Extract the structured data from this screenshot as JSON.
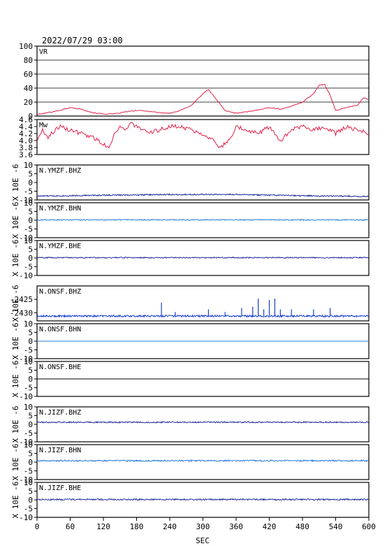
{
  "header": {
    "datetime": "2022/07/29 03:00"
  },
  "colors": {
    "frame": "#000000",
    "vr": "#e0204a",
    "mw": "#e0204a",
    "blue_dark": "#1f2f9a",
    "blue_light": "#2c7fd8",
    "blue_mid": "#1a3fd0"
  },
  "chart_data": [
    {
      "type": "line",
      "label": "VR",
      "ylim": [
        0,
        100
      ],
      "yticks": [
        "0",
        "20",
        "40",
        "60",
        "80",
        "100"
      ],
      "grid": true,
      "color_key": "vr",
      "x": [
        0,
        20,
        40,
        60,
        80,
        100,
        120,
        140,
        160,
        180,
        200,
        220,
        240,
        260,
        280,
        300,
        310,
        320,
        340,
        360,
        380,
        400,
        420,
        440,
        460,
        480,
        500,
        510,
        520,
        530,
        540,
        560,
        570,
        580,
        590,
        600
      ],
      "y": [
        2,
        5,
        8,
        12,
        10,
        5,
        3,
        3,
        6,
        8,
        7,
        5,
        4,
        8,
        16,
        32,
        38,
        28,
        8,
        4,
        6,
        9,
        12,
        10,
        14,
        20,
        32,
        44,
        45,
        30,
        8,
        12,
        14,
        16,
        26,
        24
      ]
    },
    {
      "type": "line",
      "label": "Mw",
      "ylim": [
        3.6,
        4.6
      ],
      "yticks": [
        "3.6",
        "3.8",
        "4.0",
        "4.2",
        "4.4",
        "4.6"
      ],
      "grid": false,
      "color_key": "mw",
      "x": [
        0,
        10,
        20,
        40,
        60,
        80,
        100,
        110,
        120,
        130,
        140,
        150,
        160,
        170,
        180,
        200,
        220,
        240,
        260,
        280,
        300,
        320,
        330,
        340,
        350,
        360,
        380,
        400,
        420,
        440,
        460,
        480,
        500,
        520,
        540,
        560,
        580,
        600
      ],
      "y": [
        4.0,
        4.3,
        4.1,
        4.4,
        4.3,
        4.2,
        4.1,
        4.0,
        3.9,
        3.8,
        4.2,
        4.4,
        4.3,
        4.5,
        4.4,
        4.2,
        4.3,
        4.4,
        4.4,
        4.3,
        4.2,
        4.0,
        3.8,
        3.9,
        4.1,
        4.4,
        4.3,
        4.2,
        4.4,
        4.0,
        4.3,
        4.4,
        4.3,
        4.4,
        4.2,
        4.4,
        4.3,
        4.2
      ]
    },
    {
      "type": "line",
      "label": "N.YMZF.BHZ",
      "ylabel": "X 10E -6",
      "ylim": [
        -10,
        10
      ],
      "yticks": [
        "-10",
        "-5",
        "0",
        "5",
        "10"
      ],
      "color_key": "blue_dark",
      "baseline": -7.5,
      "noise": 0.35,
      "drift": [
        [
          0,
          -7.8
        ],
        [
          120,
          -7.3
        ],
        [
          240,
          -6.9
        ],
        [
          360,
          -6.9
        ],
        [
          480,
          -7.6
        ],
        [
          600,
          -8.0
        ]
      ]
    },
    {
      "type": "line",
      "label": "N.YMZF.BHN",
      "ylabel": "X 10E -6",
      "ylim": [
        -10,
        10
      ],
      "yticks": [
        "-10",
        "-5",
        "0",
        "5",
        "10"
      ],
      "color_key": "blue_light",
      "baseline": 0.2,
      "noise": 0.3
    },
    {
      "type": "line",
      "label": "N.YMZF.BHE",
      "ylabel": "X 10E -6",
      "ylim": [
        -10,
        10
      ],
      "yticks": [
        "-10",
        "-5",
        "0",
        "5",
        "10"
      ],
      "color_key": "blue_dark",
      "baseline": 0.2,
      "noise": 0.3
    },
    {
      "type": "line",
      "label": "N.ONSF.BHZ",
      "ylabel": "X 10E -6",
      "ylim": [
        -2433,
        -2420
      ],
      "yticks": [
        "-2425",
        "-2430"
      ],
      "ytick_values": [
        -2425,
        -2430
      ],
      "color_key": "blue_mid",
      "baseline": -2431.2,
      "noise": 0.35,
      "spikes": [
        [
          225,
          5.0
        ],
        [
          250,
          1.5
        ],
        [
          310,
          2.5
        ],
        [
          340,
          1.5
        ],
        [
          370,
          3.0
        ],
        [
          390,
          3.5
        ],
        [
          400,
          6.5
        ],
        [
          410,
          2.5
        ],
        [
          420,
          6.0
        ],
        [
          430,
          6.5
        ],
        [
          440,
          2.5
        ],
        [
          460,
          2.5
        ],
        [
          500,
          2.5
        ],
        [
          530,
          3.0
        ]
      ]
    },
    {
      "type": "line",
      "label": "N.ONSF.BHN",
      "ylabel": "X 10E -6",
      "ylim": [
        -10,
        10
      ],
      "yticks": [
        "-10",
        "-5",
        "0",
        "5",
        "10"
      ],
      "color_key": "blue_light",
      "baseline": 0.0,
      "noise": 0.0
    },
    {
      "type": "line",
      "label": "N.ONSF.BHE",
      "ylabel": "X 10E -6",
      "ylim": [
        -10,
        10
      ],
      "yticks": [
        "-10",
        "-5",
        "0",
        "5",
        "10"
      ],
      "color_key": "frame",
      "baseline": 0.0,
      "noise": 0.0
    },
    {
      "type": "line",
      "label": "N.JIZF.BHZ",
      "ylabel": "X 10E -6",
      "ylim": [
        -10,
        10
      ],
      "yticks": [
        "-10",
        "-5",
        "0",
        "5",
        "10"
      ],
      "color_key": "blue_dark",
      "baseline": 1.2,
      "noise": 0.35
    },
    {
      "type": "line",
      "label": "N.JIZF.BHN",
      "ylabel": "X 10E -6",
      "ylim": [
        -10,
        10
      ],
      "yticks": [
        "-10",
        "-5",
        "0",
        "5",
        "10"
      ],
      "color_key": "blue_light",
      "baseline": 0.8,
      "noise": 0.4
    },
    {
      "type": "line",
      "label": "N.JIZF.BHE",
      "ylabel": "X 10E -6",
      "ylim": [
        -10,
        10
      ],
      "yticks": [
        "-10",
        "-5",
        "0",
        "5",
        "10"
      ],
      "color_key": "blue_dark",
      "baseline": 0.2,
      "noise": 0.4
    }
  ],
  "xaxis": {
    "label": "SEC",
    "xlim": [
      0,
      600
    ],
    "ticks": [
      "0",
      "60",
      "120",
      "180",
      "240",
      "300",
      "360",
      "420",
      "480",
      "540",
      "600"
    ]
  }
}
